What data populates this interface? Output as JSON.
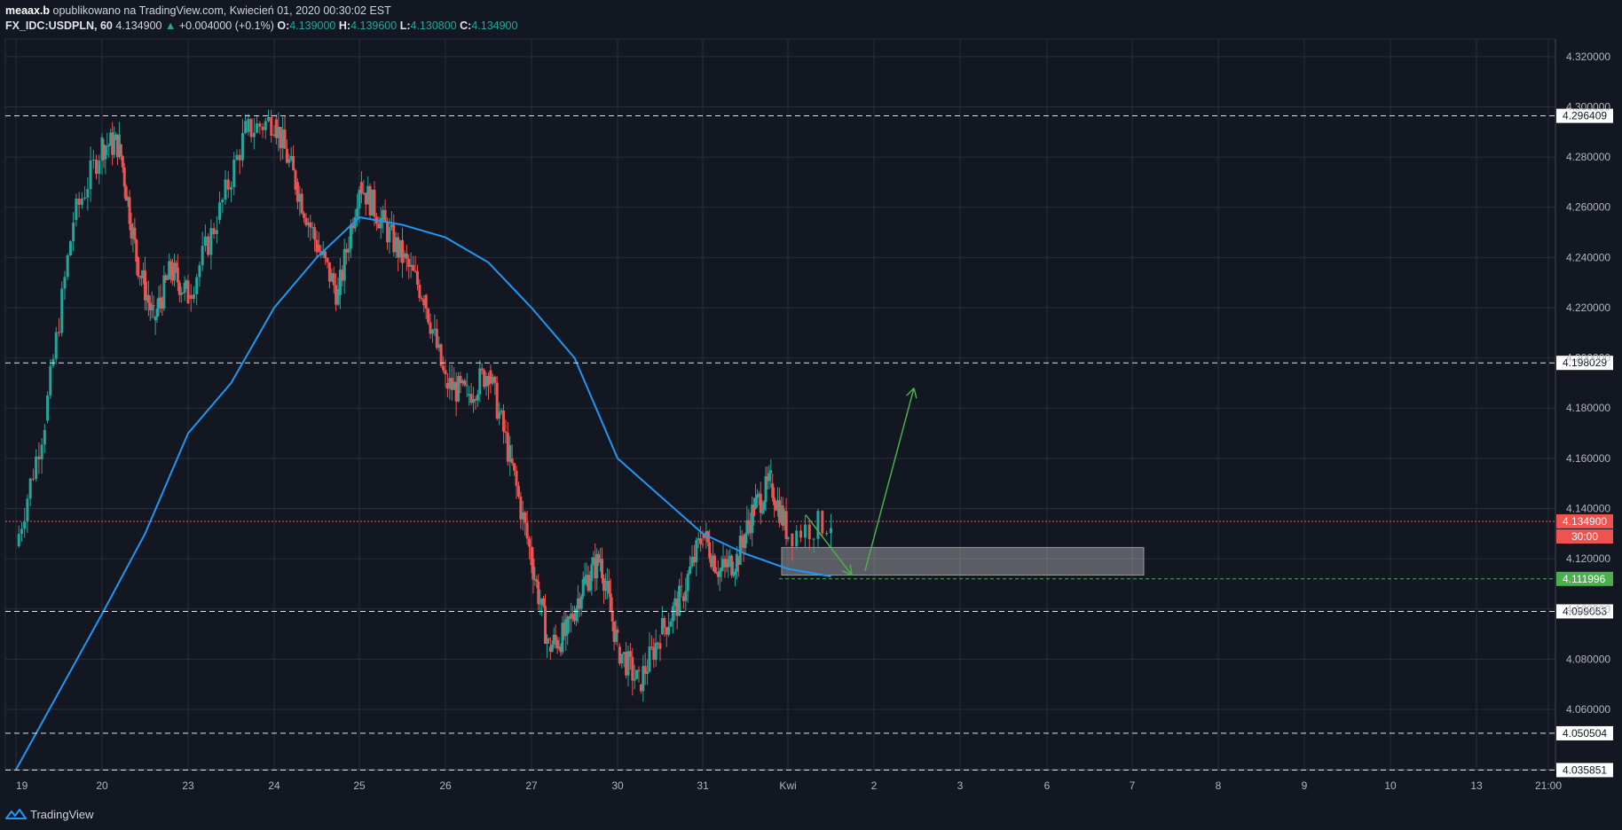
{
  "header": {
    "author": "meaax.b",
    "published": "opublikowano na TradingView.com, Kwiecień 01, 2020 00:30:02 EST",
    "symbol": "FX_IDC:USDPLN, 60",
    "last": "4.134900",
    "arrow": "▲",
    "change": "+0.004000 (+0.1%)",
    "o_label": "O:",
    "o": "4.139000",
    "h_label": "H:",
    "h": "4.139600",
    "l_label": "L:",
    "l": "4.130800",
    "c_label": "C:",
    "c": "4.134900"
  },
  "footer": {
    "brand": "TradingView"
  },
  "colors": {
    "bg": "#131722",
    "up": "#26a69a",
    "down": "#ef5350",
    "ma": "#2196f3",
    "grid": "#2a2e39",
    "green_line": "#4caf50"
  },
  "chart_data": {
    "type": "candlestick",
    "symbol": "FX_IDC:USDPLN",
    "timeframe": "60",
    "ylim": [
      4.036,
      4.327
    ],
    "y_ticks": [
      "4.060000",
      "4.080000",
      "4.100000",
      "4.120000",
      "4.140000",
      "4.160000",
      "4.180000",
      "4.200000",
      "4.220000",
      "4.240000",
      "4.260000",
      "4.280000",
      "4.300000",
      "4.320000"
    ],
    "x_ticks": [
      "19",
      "20",
      "23",
      "24",
      "25",
      "26",
      "27",
      "30",
      "31",
      "Kwi",
      "2",
      "3",
      "6",
      "7",
      "8",
      "9",
      "10",
      "13",
      "21:00"
    ],
    "price_series": [
      {
        "x": "19",
        "y": 4.125
      },
      {
        "x": "19",
        "y": 4.175
      },
      {
        "x": "19",
        "y": 4.255
      },
      {
        "x": "20",
        "y": 4.285
      },
      {
        "x": "20",
        "y": 4.285
      },
      {
        "x": "20",
        "y": 4.24
      },
      {
        "x": "20",
        "y": 4.215
      },
      {
        "x": "20",
        "y": 4.235
      },
      {
        "x": "23",
        "y": 4.225
      },
      {
        "x": "23",
        "y": 4.255
      },
      {
        "x": "23",
        "y": 4.29
      },
      {
        "x": "24",
        "y": 4.295
      },
      {
        "x": "24",
        "y": 4.27
      },
      {
        "x": "24",
        "y": 4.245
      },
      {
        "x": "24",
        "y": 4.225
      },
      {
        "x": "25",
        "y": 4.27
      },
      {
        "x": "25",
        "y": 4.255
      },
      {
        "x": "25",
        "y": 4.24
      },
      {
        "x": "25",
        "y": 4.225
      },
      {
        "x": "26",
        "y": 4.19
      },
      {
        "x": "26",
        "y": 4.185
      },
      {
        "x": "26",
        "y": 4.195
      },
      {
        "x": "26",
        "y": 4.16
      },
      {
        "x": "27",
        "y": 4.12
      },
      {
        "x": "27",
        "y": 4.085
      },
      {
        "x": "27",
        "y": 4.09
      },
      {
        "x": "27",
        "y": 4.11
      },
      {
        "x": "27",
        "y": 4.12
      },
      {
        "x": "30",
        "y": 4.085
      },
      {
        "x": "30",
        "y": 4.07
      },
      {
        "x": "30",
        "y": 4.09
      },
      {
        "x": "30",
        "y": 4.105
      },
      {
        "x": "31",
        "y": 4.13
      },
      {
        "x": "31",
        "y": 4.115
      },
      {
        "x": "31",
        "y": 4.12
      },
      {
        "x": "31",
        "y": 4.14
      },
      {
        "x": "31",
        "y": 4.15
      },
      {
        "x": "Kwi",
        "y": 4.13
      },
      {
        "x": "Kwi",
        "y": 4.1349
      }
    ],
    "ma_series": {
      "name": "",
      "values": [
        {
          "x": "19",
          "y": 4.03
        },
        {
          "x": "20",
          "y": 4.098
        },
        {
          "x": "20",
          "y": 4.13
        },
        {
          "x": "23",
          "y": 4.17
        },
        {
          "x": "23",
          "y": 4.19
        },
        {
          "x": "24",
          "y": 4.22
        },
        {
          "x": "24",
          "y": 4.24
        },
        {
          "x": "25",
          "y": 4.256
        },
        {
          "x": "25",
          "y": 4.253
        },
        {
          "x": "26",
          "y": 4.248
        },
        {
          "x": "26",
          "y": 4.238
        },
        {
          "x": "27",
          "y": 4.22
        },
        {
          "x": "27",
          "y": 4.2
        },
        {
          "x": "30",
          "y": 4.16
        },
        {
          "x": "30",
          "y": 4.145
        },
        {
          "x": "31",
          "y": 4.13
        },
        {
          "x": "31",
          "y": 4.122
        },
        {
          "x": "Kwi",
          "y": 4.116
        },
        {
          "x": "Kwi",
          "y": 4.113
        }
      ]
    },
    "horizontal_lines": [
      {
        "price": 4.296409,
        "label": "4.296409",
        "style": "dashed-white"
      },
      {
        "price": 4.198029,
        "label": "4.198029",
        "style": "dashed-white"
      },
      {
        "price": 4.099053,
        "label": "4.099053",
        "style": "dashed-white"
      },
      {
        "price": 4.050504,
        "label": "4.050504",
        "style": "dashed-white"
      },
      {
        "price": 4.035851,
        "label": "4.035851",
        "style": "dashed-white"
      },
      {
        "price": 4.111996,
        "label": "4.111996",
        "style": "dashed-green"
      },
      {
        "price": 4.1349,
        "label": "4.134900",
        "style": "dotted-red",
        "countdown": "30:00"
      }
    ],
    "zone": {
      "price_top": 4.1245,
      "price_bottom": 4.1135,
      "from": "Kwi",
      "to": "7"
    },
    "projection": [
      {
        "x": "Kwi",
        "y": 4.1375
      },
      {
        "x": "2",
        "y": 4.1135
      },
      {
        "x": "2",
        "y": 4.188
      }
    ],
    "grid": true
  }
}
